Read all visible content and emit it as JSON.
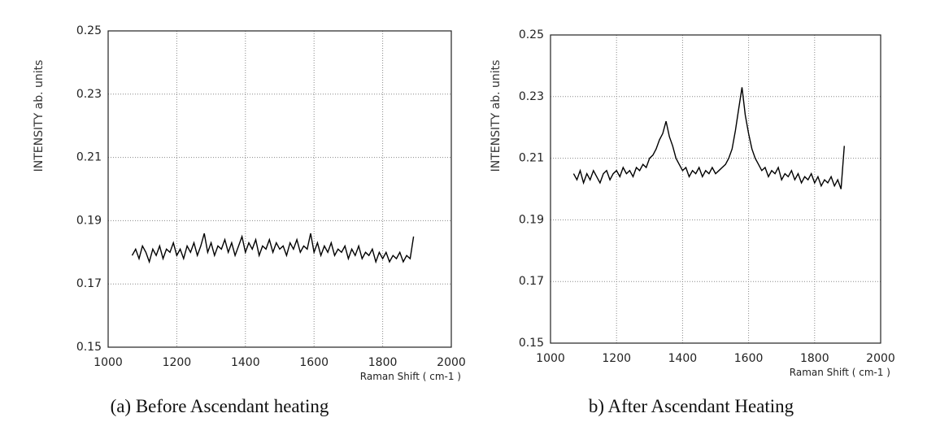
{
  "chart_data": [
    {
      "type": "line",
      "caption": "(a) Before Ascendant heating",
      "xlabel": "Raman Shift ( cm-1 )",
      "ylabel": "INTENSITY  ab. units",
      "xlim": [
        1000,
        2000
      ],
      "xticks": [
        1000,
        1200,
        1400,
        1600,
        1800,
        2000
      ],
      "ylim": [
        0.15,
        0.25
      ],
      "yticks": [
        0.15,
        0.17,
        0.19,
        0.21,
        0.23,
        0.25
      ],
      "grid": true,
      "color": "#000000",
      "x": [
        1070,
        1080,
        1090,
        1100,
        1110,
        1120,
        1130,
        1140,
        1150,
        1160,
        1170,
        1180,
        1190,
        1200,
        1210,
        1220,
        1230,
        1240,
        1250,
        1260,
        1270,
        1280,
        1290,
        1300,
        1310,
        1320,
        1330,
        1340,
        1350,
        1360,
        1370,
        1380,
        1390,
        1400,
        1410,
        1420,
        1430,
        1440,
        1450,
        1460,
        1470,
        1480,
        1490,
        1500,
        1510,
        1520,
        1530,
        1540,
        1550,
        1560,
        1570,
        1580,
        1590,
        1600,
        1610,
        1620,
        1630,
        1640,
        1650,
        1660,
        1670,
        1680,
        1690,
        1700,
        1710,
        1720,
        1730,
        1740,
        1750,
        1760,
        1770,
        1780,
        1790,
        1800,
        1810,
        1820,
        1830,
        1840,
        1850,
        1860,
        1870,
        1880,
        1890
      ],
      "values": [
        0.179,
        0.181,
        0.178,
        0.182,
        0.18,
        0.177,
        0.181,
        0.179,
        0.182,
        0.178,
        0.181,
        0.18,
        0.183,
        0.179,
        0.181,
        0.178,
        0.182,
        0.18,
        0.183,
        0.179,
        0.182,
        0.186,
        0.18,
        0.183,
        0.179,
        0.182,
        0.181,
        0.184,
        0.18,
        0.183,
        0.179,
        0.182,
        0.185,
        0.18,
        0.183,
        0.181,
        0.184,
        0.179,
        0.182,
        0.181,
        0.184,
        0.18,
        0.183,
        0.181,
        0.182,
        0.179,
        0.183,
        0.181,
        0.184,
        0.18,
        0.182,
        0.181,
        0.186,
        0.18,
        0.183,
        0.179,
        0.182,
        0.18,
        0.183,
        0.179,
        0.181,
        0.18,
        0.182,
        0.178,
        0.181,
        0.179,
        0.182,
        0.178,
        0.18,
        0.179,
        0.181,
        0.177,
        0.18,
        0.178,
        0.18,
        0.177,
        0.179,
        0.178,
        0.18,
        0.177,
        0.179,
        0.178,
        0.185
      ]
    },
    {
      "type": "line",
      "caption": "b)  After Ascendant Heating",
      "xlabel": "Raman Shift ( cm-1 )",
      "ylabel": "INTENSITY  ab. units",
      "xlim": [
        1000,
        2000
      ],
      "xticks": [
        1000,
        1200,
        1400,
        1600,
        1800,
        2000
      ],
      "ylim": [
        0.15,
        0.25
      ],
      "yticks": [
        0.15,
        0.17,
        0.19,
        0.21,
        0.23,
        0.25
      ],
      "grid": true,
      "color": "#000000",
      "x": [
        1070,
        1080,
        1090,
        1100,
        1110,
        1120,
        1130,
        1140,
        1150,
        1160,
        1170,
        1180,
        1190,
        1200,
        1210,
        1220,
        1230,
        1240,
        1250,
        1260,
        1270,
        1280,
        1290,
        1300,
        1310,
        1320,
        1330,
        1340,
        1350,
        1360,
        1370,
        1380,
        1390,
        1400,
        1410,
        1420,
        1430,
        1440,
        1450,
        1460,
        1470,
        1480,
        1490,
        1500,
        1510,
        1520,
        1530,
        1540,
        1550,
        1560,
        1570,
        1580,
        1590,
        1600,
        1610,
        1620,
        1630,
        1640,
        1650,
        1660,
        1670,
        1680,
        1690,
        1700,
        1710,
        1720,
        1730,
        1740,
        1750,
        1760,
        1770,
        1780,
        1790,
        1800,
        1810,
        1820,
        1830,
        1840,
        1850,
        1860,
        1870,
        1880,
        1890
      ],
      "values": [
        0.205,
        0.203,
        0.206,
        0.202,
        0.205,
        0.203,
        0.206,
        0.204,
        0.202,
        0.205,
        0.206,
        0.203,
        0.205,
        0.206,
        0.204,
        0.207,
        0.205,
        0.206,
        0.204,
        0.207,
        0.206,
        0.208,
        0.207,
        0.21,
        0.211,
        0.213,
        0.216,
        0.218,
        0.222,
        0.217,
        0.214,
        0.21,
        0.208,
        0.206,
        0.207,
        0.204,
        0.206,
        0.205,
        0.207,
        0.204,
        0.206,
        0.205,
        0.207,
        0.205,
        0.206,
        0.207,
        0.208,
        0.21,
        0.213,
        0.219,
        0.226,
        0.233,
        0.224,
        0.218,
        0.213,
        0.21,
        0.208,
        0.206,
        0.207,
        0.204,
        0.206,
        0.205,
        0.207,
        0.203,
        0.205,
        0.204,
        0.206,
        0.203,
        0.205,
        0.202,
        0.204,
        0.203,
        0.205,
        0.202,
        0.204,
        0.201,
        0.203,
        0.202,
        0.204,
        0.201,
        0.203,
        0.2,
        0.214
      ]
    }
  ]
}
